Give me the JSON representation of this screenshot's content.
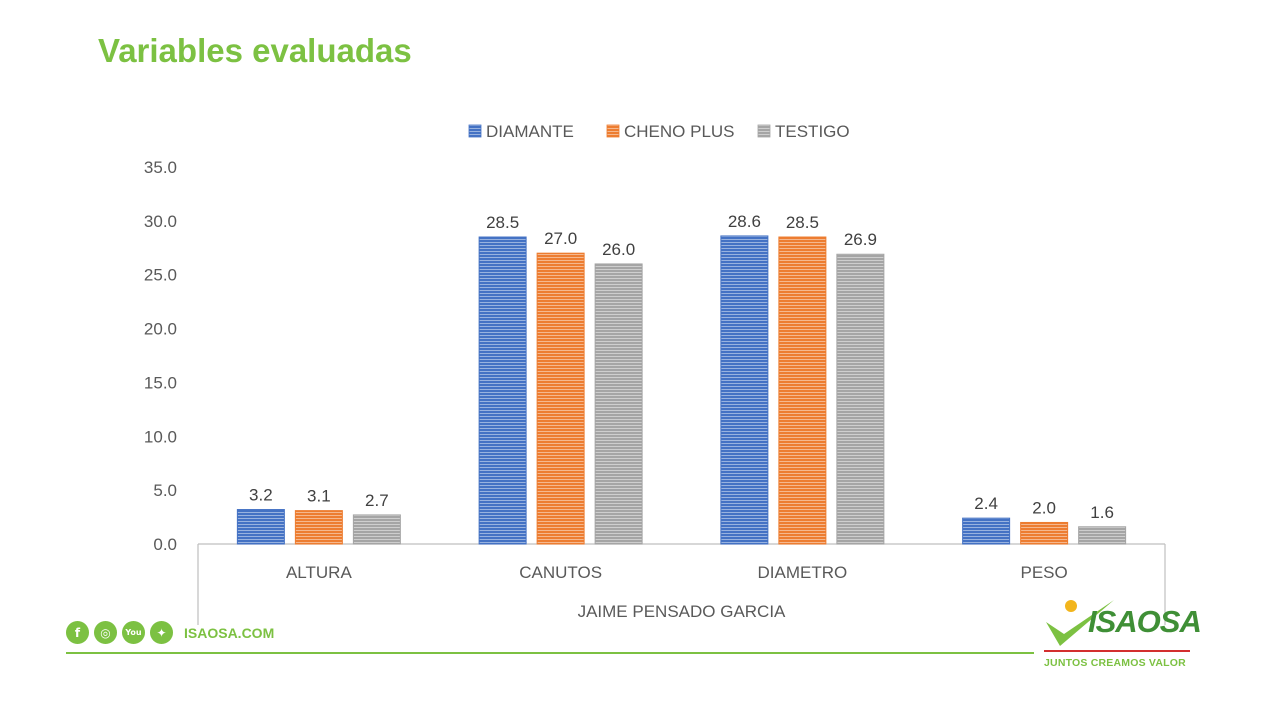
{
  "page": {
    "title": "Variables evaluadas"
  },
  "chart_data": {
    "type": "bar",
    "categories": [
      "ALTURA",
      "CANUTOS",
      "DIAMETRO",
      "PESO"
    ],
    "group_label": "JAIME PENSADO GARCIA",
    "series": [
      {
        "name": "DIAMANTE",
        "color": "#4472c4",
        "values": [
          3.2,
          28.5,
          28.6,
          2.4
        ]
      },
      {
        "name": "CHENO PLUS",
        "color": "#ed7d31",
        "values": [
          3.1,
          27.0,
          28.5,
          2.0
        ]
      },
      {
        "name": "TESTIGO",
        "color": "#a5a5a5",
        "values": [
          2.7,
          26.0,
          26.9,
          1.6
        ]
      }
    ],
    "yticks": [
      "0.0",
      "5.0",
      "10.0",
      "15.0",
      "20.0",
      "25.0",
      "30.0",
      "35.0"
    ],
    "ylim": [
      0,
      35
    ],
    "legend": "top",
    "grid": false
  },
  "footer": {
    "social": [
      {
        "name": "facebook-icon",
        "glyph": "f"
      },
      {
        "name": "instagram-icon",
        "glyph": "◎"
      },
      {
        "name": "youtube-icon",
        "glyph": "You"
      },
      {
        "name": "twitter-icon",
        "glyph": "✦"
      }
    ],
    "site": "ISAOSA.COM"
  },
  "brand": {
    "name": "ISAOSA",
    "tagline": "JUNTOS CREAMOS VALOR"
  }
}
